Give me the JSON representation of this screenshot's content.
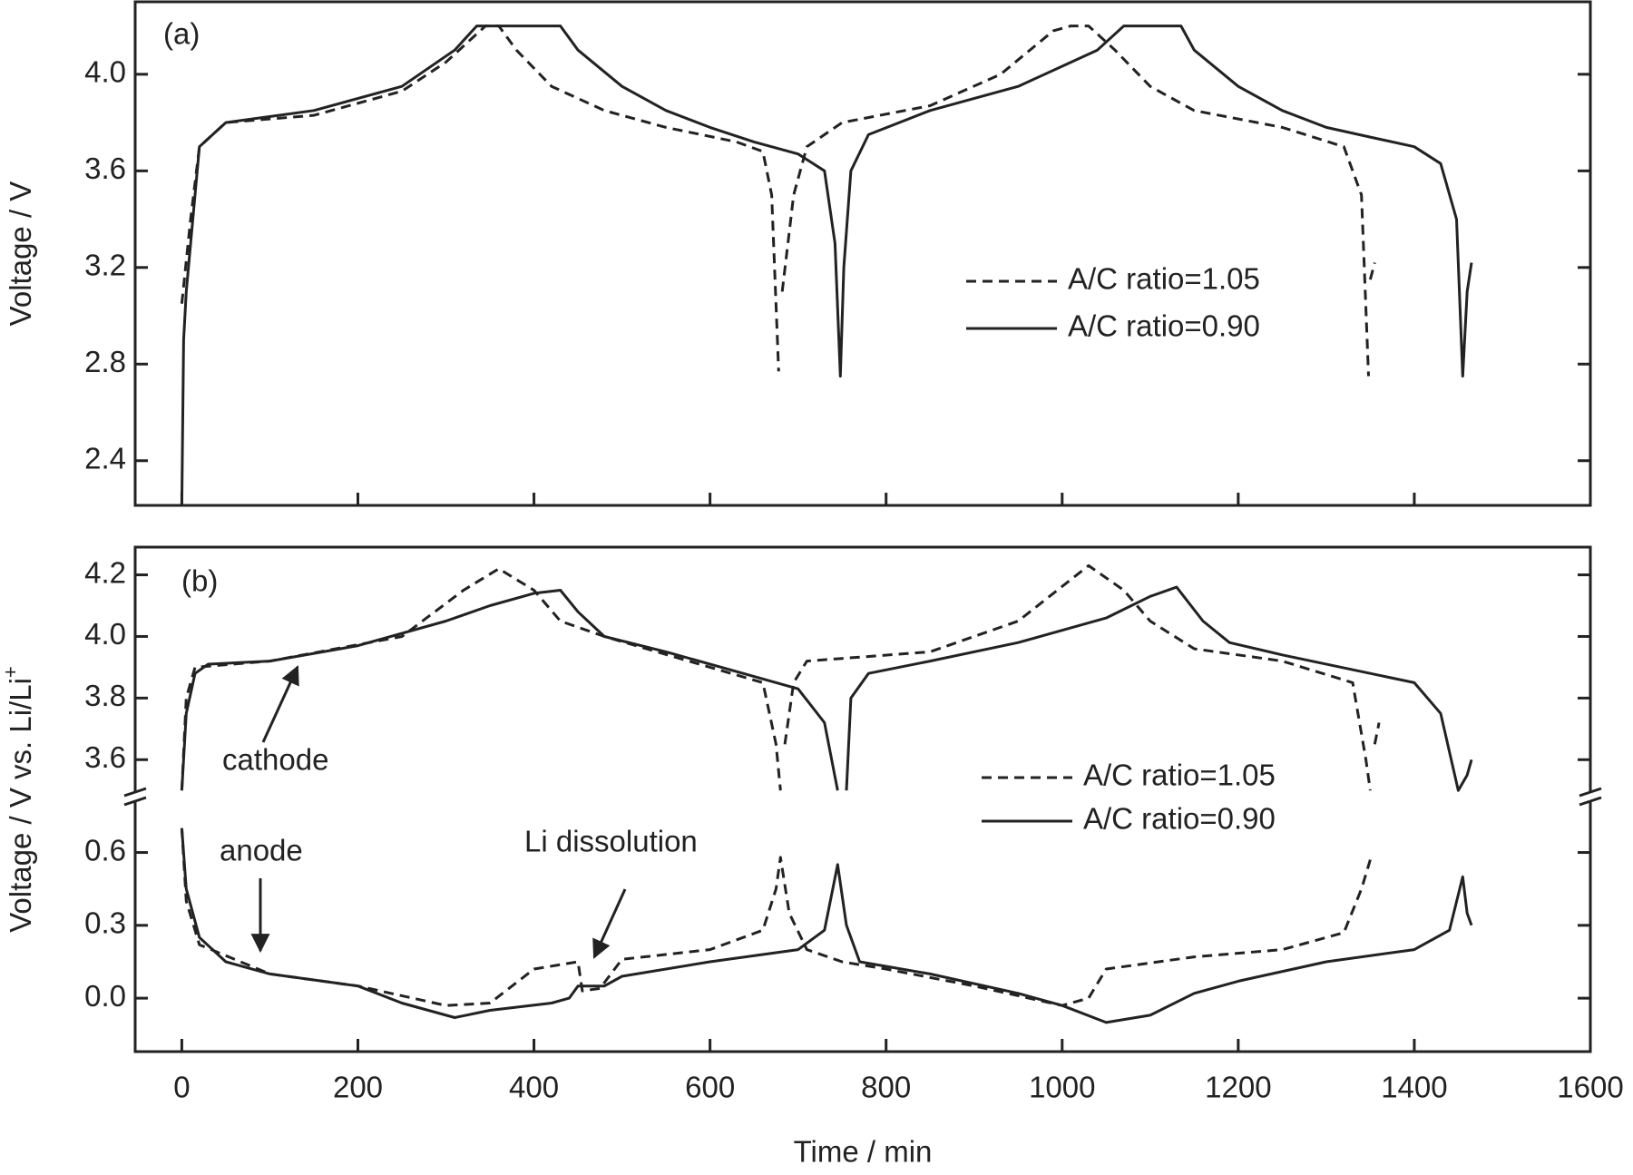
{
  "chart_data": [
    {
      "type": "line",
      "title": "(a)",
      "ylabel": "Voltage / V",
      "xlim": [
        -53,
        1600
      ],
      "ylim": [
        2.215,
        4.3
      ],
      "yticks": [
        2.4,
        2.8,
        3.2,
        3.6,
        {
          "value": 4,
          "label": "4.0"
        }
      ],
      "series": [
        {
          "name": "A/C ratio=1.05",
          "color": "#222222",
          "dash": true,
          "x": [
            0,
            10,
            20,
            50,
            150,
            250,
            300,
            330,
            345,
            360,
            380,
            420,
            480,
            550,
            630,
            660,
            670,
            678,
            null,
            682,
            695,
            710,
            750,
            850,
            930,
            990,
            1010,
            1030,
            1060,
            1100,
            1150,
            1250,
            1320,
            1340,
            1348,
            null,
            1350,
            1355
          ],
          "values": [
            3.05,
            3.4,
            3.7,
            3.8,
            3.83,
            3.93,
            4.05,
            4.15,
            4.2,
            4.2,
            4.1,
            3.95,
            3.85,
            3.78,
            3.72,
            3.68,
            3.5,
            2.77,
            null,
            3.1,
            3.5,
            3.7,
            3.8,
            3.87,
            4.0,
            4.18,
            4.2,
            4.2,
            4.1,
            3.95,
            3.85,
            3.78,
            3.7,
            3.5,
            2.75,
            null,
            3.15,
            3.22
          ]
        },
        {
          "name": "A/C ratio=0.90",
          "color": "#222222",
          "dash": false,
          "x": [
            0,
            2,
            5,
            20,
            50,
            150,
            250,
            310,
            335,
            430,
            450,
            500,
            550,
            600,
            650,
            700,
            730,
            742,
            748,
            752,
            760,
            780,
            850,
            950,
            1040,
            1070,
            1135,
            1150,
            1200,
            1250,
            1300,
            1350,
            1400,
            1430,
            1448,
            1455,
            1460,
            1465
          ],
          "values": [
            2.215,
            2.9,
            3.1,
            3.7,
            3.8,
            3.85,
            3.95,
            4.1,
            4.2,
            4.2,
            4.1,
            3.95,
            3.85,
            3.78,
            3.72,
            3.67,
            3.6,
            3.3,
            2.75,
            3.2,
            3.6,
            3.75,
            3.85,
            3.95,
            4.1,
            4.2,
            4.2,
            4.1,
            3.95,
            3.85,
            3.78,
            3.74,
            3.7,
            3.63,
            3.4,
            2.75,
            3.1,
            3.22
          ]
        }
      ]
    },
    {
      "type": "line",
      "title": "(b)",
      "ylabel": "Voltage / V vs. Li/Li",
      "ylabel_sup": "+",
      "xlabel": "Time /  min",
      "xlim": [
        -53,
        1600
      ],
      "xticks": [
        0,
        200,
        400,
        600,
        800,
        1000,
        1200,
        1400,
        1600
      ],
      "yaxes": [
        {
          "ylim": [
            3.48,
            4.29
          ],
          "yticks": [
            3.6,
            3.8,
            {
              "value": 4,
              "label": "4.0"
            },
            4.2
          ]
        },
        {
          "ylim": [
            -0.22,
            0.83
          ],
          "yticks": [
            {
              "value": 0,
              "label": "0.0"
            },
            0.3,
            0.6
          ]
        }
      ],
      "annotations": [
        "cathode",
        "anode",
        "Li dissolution"
      ],
      "series": [
        {
          "name": "A/C ratio=1.05",
          "color": "#222222",
          "dash": true,
          "segments": [
            {
              "x": [
                0,
                5,
                15,
                100,
                250,
                320,
                360,
                400,
                430,
                480,
                600,
                660,
                675,
                680,
                null,
                685,
                695,
                710,
                850,
                950,
                1030,
                1070,
                1100,
                1150,
                1250,
                1330,
                1345,
                1350,
                null,
                1355,
                1360
              ],
              "values": [
                3.5,
                3.8,
                3.9,
                3.92,
                4.0,
                4.15,
                4.22,
                4.15,
                4.05,
                4.0,
                3.9,
                3.85,
                3.65,
                3.5,
                null,
                3.65,
                3.85,
                3.92,
                3.95,
                4.05,
                4.23,
                4.15,
                4.05,
                3.96,
                3.92,
                3.85,
                3.6,
                3.5,
                null,
                3.65,
                3.72
              ]
            },
            {
              "x": [
                0,
                5,
                20,
                100,
                200,
                300,
                350,
                400,
                450,
                455,
                475,
                500,
                600,
                660,
                675,
                680,
                690,
                710,
                750,
                800,
                900,
                1000,
                1030,
                1050,
                1150,
                1250,
                1320,
                1340,
                1350
              ],
              "values": [
                0.7,
                0.4,
                0.22,
                0.1,
                0.05,
                -0.03,
                -0.02,
                0.12,
                0.15,
                0.03,
                0.04,
                0.16,
                0.2,
                0.28,
                0.45,
                0.58,
                0.35,
                0.2,
                0.15,
                0.12,
                0.05,
                -0.03,
                0.0,
                0.12,
                0.17,
                0.2,
                0.27,
                0.45,
                0.57
              ]
            }
          ]
        },
        {
          "name": "A/C ratio=0.90",
          "color": "#222222",
          "dash": false,
          "segments": [
            {
              "x": [
                0,
                5,
                15,
                30,
                100,
                200,
                300,
                350,
                400,
                430,
                450,
                480,
                550,
                650,
                700,
                730,
                745,
                null,
                755,
                760,
                780,
                850,
                950,
                1050,
                1100,
                1130,
                1160,
                1190,
                1250,
                1350,
                1400,
                1430,
                1450,
                1460,
                1465
              ],
              "values": [
                3.5,
                3.75,
                3.88,
                3.91,
                3.92,
                3.97,
                4.05,
                4.1,
                4.14,
                4.15,
                4.08,
                4.0,
                3.95,
                3.87,
                3.83,
                3.72,
                3.5,
                null,
                3.5,
                3.8,
                3.88,
                3.92,
                3.98,
                4.06,
                4.13,
                4.16,
                4.05,
                3.98,
                3.94,
                3.88,
                3.85,
                3.75,
                3.5,
                3.55,
                3.6
              ]
            },
            {
              "x": [
                0,
                5,
                20,
                50,
                100,
                200,
                250,
                310,
                350,
                420,
                440,
                450,
                480,
                500,
                600,
                700,
                730,
                745,
                755,
                770,
                850,
                950,
                1000,
                1050,
                1100,
                1150,
                1200,
                1300,
                1400,
                1440,
                1455,
                1460,
                1465
              ],
              "values": [
                0.7,
                0.45,
                0.25,
                0.15,
                0.1,
                0.05,
                -0.02,
                -0.08,
                -0.05,
                -0.02,
                0.0,
                0.05,
                0.05,
                0.09,
                0.15,
                0.2,
                0.28,
                0.55,
                0.3,
                0.15,
                0.1,
                0.02,
                -0.03,
                -0.1,
                -0.07,
                0.02,
                0.07,
                0.15,
                0.2,
                0.28,
                0.5,
                0.35,
                0.3
              ]
            }
          ]
        }
      ]
    }
  ]
}
